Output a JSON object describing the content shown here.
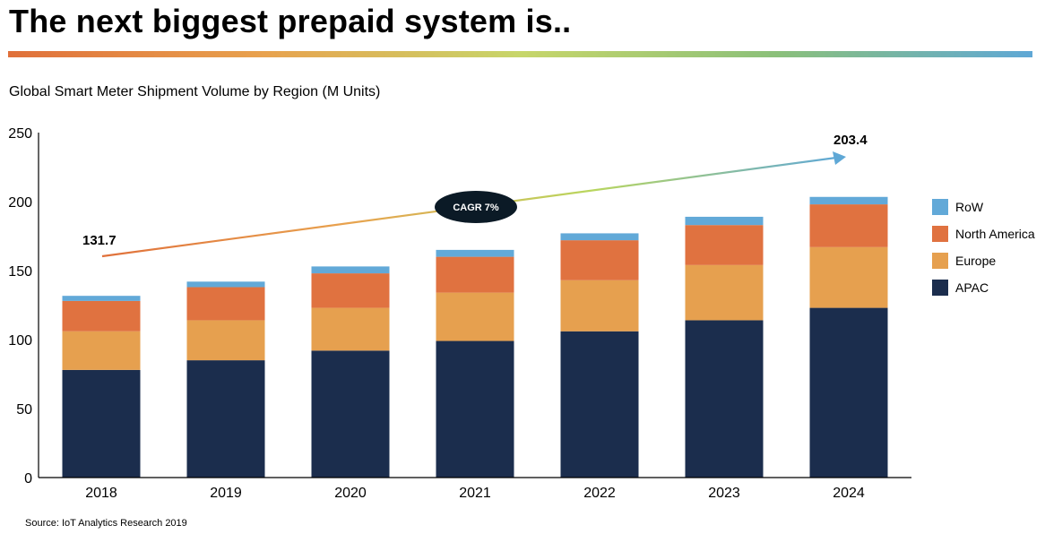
{
  "slide": {
    "title": "The next biggest prepaid system is..",
    "source": "Source: IoT Analytics Research 2019"
  },
  "colors": {
    "rule_gradient": [
      "#e0703a",
      "#e8a24e",
      "#c7d66a",
      "#8bc07a",
      "#5fa8d6"
    ],
    "arrow_gradient": [
      "#e0703a",
      "#e8a24e",
      "#b9d65e",
      "#5fa8d6"
    ],
    "badge": "#0b1a26"
  },
  "chart_data": {
    "type": "bar",
    "stacked": true,
    "title": "Global Smart Meter Shipment Volume by Region (M Units)",
    "categories": [
      "2018",
      "2019",
      "2020",
      "2021",
      "2022",
      "2023",
      "2024"
    ],
    "series": [
      {
        "name": "APAC",
        "color": "#1b2d4d",
        "values": [
          78,
          85,
          92,
          99,
          106,
          114,
          123
        ]
      },
      {
        "name": "Europe",
        "color": "#e6a04f",
        "values": [
          28,
          29,
          31,
          35,
          37,
          40,
          44
        ]
      },
      {
        "name": "North America",
        "color": "#e07240",
        "values": [
          22,
          24,
          25,
          26,
          29,
          29,
          31
        ]
      },
      {
        "name": "RoW",
        "color": "#62a9d8",
        "values": [
          3.7,
          4,
          5,
          5,
          5,
          6,
          5.4
        ]
      }
    ],
    "ylim": [
      0,
      250
    ],
    "yticks": [
      "0",
      "50",
      "100",
      "150",
      "200",
      "250"
    ],
    "xlabel": "",
    "ylabel": "",
    "grid": false,
    "legend": "right",
    "annotations": {
      "start_value": "131.7",
      "end_value": "203.4",
      "trend_label": "CAGR 7%"
    }
  }
}
